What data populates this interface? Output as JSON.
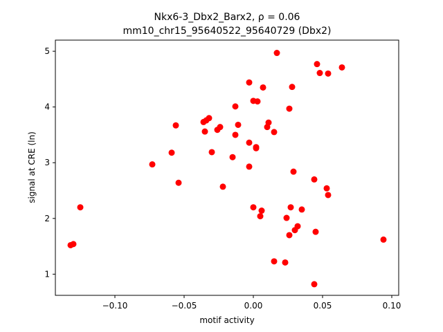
{
  "chart_data": {
    "type": "scatter",
    "title_line1": "Nkx6-3_Dbx2_Barx2, ρ = 0.06",
    "title_line2": "mm10_chr15_95640522_95640729 (Dbx2)",
    "xlabel": "motif activity",
    "ylabel": "signal at CRE (ln)",
    "xlim": [
      -0.143,
      0.105
    ],
    "ylim": [
      0.62,
      5.2
    ],
    "xticks": [
      -0.1,
      -0.05,
      0.0,
      0.05,
      0.1
    ],
    "xtick_labels": [
      "−0.10",
      "−0.05",
      "0.00",
      "0.05",
      "0.10"
    ],
    "yticks": [
      1,
      2,
      3,
      4,
      5
    ],
    "ytick_labels": [
      "1",
      "2",
      "3",
      "4",
      "5"
    ],
    "grid": false,
    "marker_color": "#ff0000",
    "points": [
      [
        -0.132,
        1.52
      ],
      [
        -0.13,
        1.54
      ],
      [
        -0.125,
        2.2
      ],
      [
        -0.073,
        2.97
      ],
      [
        -0.059,
        3.18
      ],
      [
        -0.056,
        3.67
      ],
      [
        -0.054,
        2.64
      ],
      [
        -0.036,
        3.73
      ],
      [
        -0.035,
        3.56
      ],
      [
        -0.034,
        3.76
      ],
      [
        -0.032,
        3.8
      ],
      [
        -0.03,
        3.19
      ],
      [
        -0.026,
        3.59
      ],
      [
        -0.024,
        3.64
      ],
      [
        -0.022,
        2.57
      ],
      [
        -0.015,
        3.1
      ],
      [
        -0.013,
        4.01
      ],
      [
        -0.013,
        3.5
      ],
      [
        -0.011,
        3.68
      ],
      [
        -0.003,
        4.44
      ],
      [
        -0.003,
        3.36
      ],
      [
        -0.003,
        2.93
      ],
      [
        0.0,
        4.11
      ],
      [
        0.0,
        2.2
      ],
      [
        0.002,
        3.28
      ],
      [
        0.003,
        4.1
      ],
      [
        0.002,
        3.26
      ],
      [
        0.005,
        2.04
      ],
      [
        0.006,
        2.14
      ],
      [
        0.007,
        4.35
      ],
      [
        0.01,
        3.64
      ],
      [
        0.011,
        3.72
      ],
      [
        0.015,
        3.55
      ],
      [
        0.015,
        1.23
      ],
      [
        0.017,
        4.97
      ],
      [
        0.023,
        1.21
      ],
      [
        0.024,
        2.01
      ],
      [
        0.026,
        3.97
      ],
      [
        0.026,
        1.7
      ],
      [
        0.027,
        2.2
      ],
      [
        0.028,
        4.36
      ],
      [
        0.029,
        2.84
      ],
      [
        0.03,
        1.79
      ],
      [
        0.032,
        1.86
      ],
      [
        0.035,
        2.16
      ],
      [
        0.044,
        2.7
      ],
      [
        0.044,
        0.82
      ],
      [
        0.045,
        1.76
      ],
      [
        0.046,
        4.77
      ],
      [
        0.048,
        4.61
      ],
      [
        0.053,
        2.54
      ],
      [
        0.054,
        4.6
      ],
      [
        0.054,
        2.42
      ],
      [
        0.064,
        4.71
      ],
      [
        0.094,
        1.62
      ]
    ]
  }
}
